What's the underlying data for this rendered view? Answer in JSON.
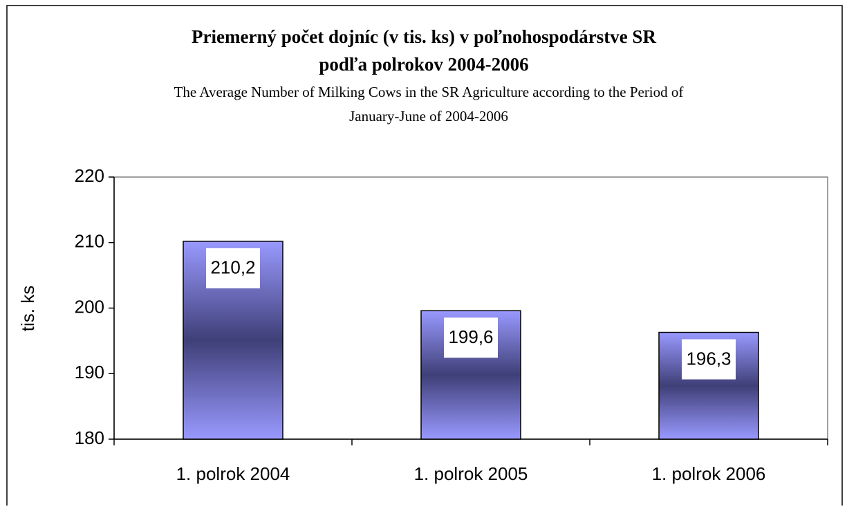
{
  "chart_data": {
    "type": "bar",
    "title": [
      "Priemerný počet dojníc (v tis. ks) v poľnohospodárstve SR",
      "podľa polrokov 2004-2006"
    ],
    "subtitle": [
      "The Average Number of Milking Cows in the SR Agriculture according to the Period of",
      "January-June of 2004-2006"
    ],
    "y_label": "tis. ks",
    "categories": [
      "1. polrok 2004",
      "1. polrok 2005",
      "1. polrok 2006"
    ],
    "values": [
      210.2,
      199.6,
      196.3
    ],
    "value_labels": [
      "210,2",
      "199,6",
      "196,3"
    ],
    "color": "#9999ff",
    "color_dark": "#3f3f78",
    "ylim": [
      180,
      220
    ],
    "yticks": [
      180,
      190,
      200,
      210,
      220
    ],
    "grid": false
  }
}
